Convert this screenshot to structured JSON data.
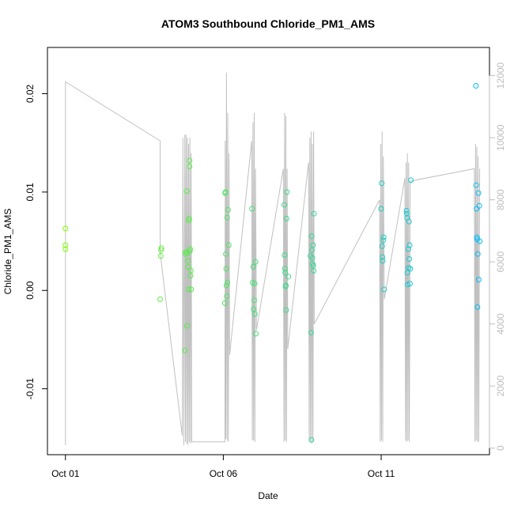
{
  "chart_data": {
    "type": "scatter",
    "title": "ATOM3 Southbound Chloride_PM1_AMS",
    "xlabel": "Date",
    "ylabel": "Chloride_PM1_AMS",
    "x_tick_labels": [
      {
        "day": 1,
        "label": "Oct 01"
      },
      {
        "day": 6,
        "label": "Oct 06"
      },
      {
        "day": 11,
        "label": "Oct 11"
      }
    ],
    "y_ticks": [
      -0.01,
      0.0,
      0.01,
      0.02
    ],
    "y_tick_labels": [
      "-0.01",
      "0.00",
      "0.01",
      "0.02"
    ],
    "y2_ticks": [
      0,
      2000,
      4000,
      6000,
      8000,
      10000,
      12000
    ],
    "y2_tick_labels": [
      "0",
      "2000",
      "4000",
      "6000",
      "8000",
      "10000",
      "12000"
    ],
    "xlim": [
      0.43,
      14.43
    ],
    "ylim": [
      -0.0167,
      0.0247
    ],
    "y2lim": [
      -212,
      12908
    ],
    "grid": false,
    "series": [
      {
        "type": "points",
        "color_scale": [
          "#7fff00",
          "#00bfff"
        ],
        "points": [
          [
            1.0,
            0.0063
          ],
          [
            1.0,
            0.0046
          ],
          [
            1.0,
            0.0042
          ],
          [
            4.0,
            -0.0009
          ],
          [
            4.02,
            0.0035
          ],
          [
            4.03,
            0.0041
          ],
          [
            4.04,
            0.0043
          ],
          [
            4.78,
            -0.0061
          ],
          [
            4.8,
            0.0037
          ],
          [
            4.82,
            0.0039
          ],
          [
            4.84,
            0.0101
          ],
          [
            4.85,
            -0.0036
          ],
          [
            4.86,
            0.0038
          ],
          [
            4.88,
            0.003
          ],
          [
            4.89,
            0.0024
          ],
          [
            4.9,
            0.0001
          ],
          [
            4.91,
            0.0071
          ],
          [
            4.92,
            0.0073
          ],
          [
            4.93,
            0.0132
          ],
          [
            4.93,
            0.0126
          ],
          [
            4.94,
            0.004
          ],
          [
            4.95,
            0.0042
          ],
          [
            4.96,
            0.0015
          ],
          [
            4.97,
            0.002
          ],
          [
            4.98,
            0.0001
          ],
          [
            6.05,
            -0.0013
          ],
          [
            6.06,
            0.0099
          ],
          [
            6.07,
            0.01
          ],
          [
            6.08,
            0.0037
          ],
          [
            6.09,
            0.0022
          ],
          [
            6.1,
            0.0005
          ],
          [
            6.11,
            -0.0006
          ],
          [
            6.12,
            0.0074
          ],
          [
            6.13,
            0.0008
          ],
          [
            6.15,
            0.0082
          ],
          [
            6.17,
            0.0046
          ],
          [
            6.91,
            0.0083
          ],
          [
            6.93,
            0.0008
          ],
          [
            6.95,
            0.0024
          ],
          [
            6.96,
            -0.0019
          ],
          [
            6.98,
            -0.001
          ],
          [
            6.99,
            0.0007
          ],
          [
            7.0,
            -0.0024
          ],
          [
            7.02,
            0.0029
          ],
          [
            7.03,
            -0.0044
          ],
          [
            7.93,
            0.0087
          ],
          [
            7.94,
            0.0036
          ],
          [
            7.95,
            0.0022
          ],
          [
            7.96,
            0.0018
          ],
          [
            7.97,
            0.0004
          ],
          [
            7.98,
            0.0005
          ],
          [
            7.99,
            -0.002
          ],
          [
            8.0,
            0.0073
          ],
          [
            8.01,
            0.01
          ],
          [
            8.06,
            0.0014
          ],
          [
            8.76,
            0.0035
          ],
          [
            8.78,
            -0.0043
          ],
          [
            8.79,
            -0.0152
          ],
          [
            8.8,
            0.0055
          ],
          [
            8.81,
            0.0041
          ],
          [
            8.82,
            0.0033
          ],
          [
            8.83,
            0.0027
          ],
          [
            8.84,
            0.0046
          ],
          [
            8.85,
            0.0025
          ],
          [
            8.86,
            0.002
          ],
          [
            8.87,
            0.0078
          ],
          [
            11.0,
            0.0083
          ],
          [
            11.02,
            0.0109
          ],
          [
            11.03,
            0.0045
          ],
          [
            11.04,
            0.0034
          ],
          [
            11.05,
            0.003
          ],
          [
            11.07,
            0.0051
          ],
          [
            11.08,
            0.0054
          ],
          [
            11.09,
            0.0001
          ],
          [
            11.8,
            0.0081
          ],
          [
            11.81,
            0.0078
          ],
          [
            11.82,
            0.0074
          ],
          [
            11.83,
            0.0018
          ],
          [
            11.84,
            0.0006
          ],
          [
            11.86,
            0.0042
          ],
          [
            11.87,
            0.0023
          ],
          [
            11.88,
            0.007
          ],
          [
            11.89,
            0.0032
          ],
          [
            11.9,
            0.0046
          ],
          [
            11.91,
            0.0007
          ],
          [
            11.92,
            0.0022
          ],
          [
            11.94,
            0.0112
          ],
          [
            14.0,
            0.0208
          ],
          [
            14.01,
            0.0107
          ],
          [
            14.02,
            0.0083
          ],
          [
            14.03,
            0.0054
          ],
          [
            14.04,
            0.0052
          ],
          [
            14.05,
            -0.0017
          ],
          [
            14.06,
            0.0037
          ],
          [
            14.08,
            0.0099
          ],
          [
            14.09,
            0.0011
          ],
          [
            14.11,
            0.0086
          ],
          [
            14.12,
            0.005
          ]
        ]
      },
      {
        "type": "line",
        "axis": "right",
        "color": "#c0c0c0",
        "points": [
          [
            1.0,
            100
          ],
          [
            1.0,
            11800
          ],
          [
            4.0,
            9900
          ],
          [
            4.0,
            6300
          ],
          [
            4.7,
            400
          ],
          [
            4.72,
            10000
          ],
          [
            4.75,
            100
          ],
          [
            4.78,
            10100
          ],
          [
            4.8,
            200
          ],
          [
            4.82,
            10100
          ],
          [
            4.84,
            150
          ],
          [
            4.86,
            10000
          ],
          [
            4.88,
            100
          ],
          [
            4.9,
            9800
          ],
          [
            4.92,
            200
          ],
          [
            4.94,
            10000
          ],
          [
            4.96,
            150
          ],
          [
            4.98,
            9500
          ],
          [
            5.0,
            200
          ],
          [
            6.05,
            200
          ],
          [
            6.06,
            9900
          ],
          [
            6.08,
            300
          ],
          [
            6.1,
            12100
          ],
          [
            6.12,
            250
          ],
          [
            6.14,
            10800
          ],
          [
            6.16,
            200
          ],
          [
            6.18,
            9500
          ],
          [
            6.2,
            3000
          ],
          [
            6.9,
            9900
          ],
          [
            6.92,
            250
          ],
          [
            6.94,
            10500
          ],
          [
            6.96,
            250
          ],
          [
            6.98,
            10800
          ],
          [
            7.0,
            200
          ],
          [
            7.02,
            9000
          ],
          [
            7.05,
            3800
          ],
          [
            7.9,
            9000
          ],
          [
            7.92,
            200
          ],
          [
            7.94,
            10800
          ],
          [
            7.96,
            250
          ],
          [
            7.98,
            10700
          ],
          [
            8.0,
            200
          ],
          [
            8.02,
            9000
          ],
          [
            8.04,
            3200
          ],
          [
            8.7,
            9200
          ],
          [
            8.72,
            250
          ],
          [
            8.74,
            10000
          ],
          [
            8.76,
            200
          ],
          [
            8.78,
            10200
          ],
          [
            8.8,
            150
          ],
          [
            8.82,
            9800
          ],
          [
            8.84,
            200
          ],
          [
            8.86,
            10200
          ],
          [
            8.88,
            4000
          ],
          [
            10.95,
            8000
          ],
          [
            10.97,
            200
          ],
          [
            10.99,
            9800
          ],
          [
            11.01,
            250
          ],
          [
            11.03,
            10200
          ],
          [
            11.05,
            200
          ],
          [
            11.07,
            9400
          ],
          [
            11.1,
            4800
          ],
          [
            11.75,
            8700
          ],
          [
            11.77,
            250
          ],
          [
            11.79,
            9200
          ],
          [
            11.81,
            200
          ],
          [
            11.83,
            9500
          ],
          [
            11.85,
            250
          ],
          [
            11.87,
            9200
          ],
          [
            11.89,
            200
          ],
          [
            11.92,
            8600
          ],
          [
            13.95,
            9000
          ],
          [
            13.97,
            200
          ],
          [
            13.99,
            9800
          ],
          [
            14.01,
            250
          ],
          [
            14.03,
            9700
          ],
          [
            14.05,
            200
          ],
          [
            14.07,
            9400
          ],
          [
            14.09,
            200
          ],
          [
            14.12,
            9000
          ]
        ]
      }
    ]
  }
}
